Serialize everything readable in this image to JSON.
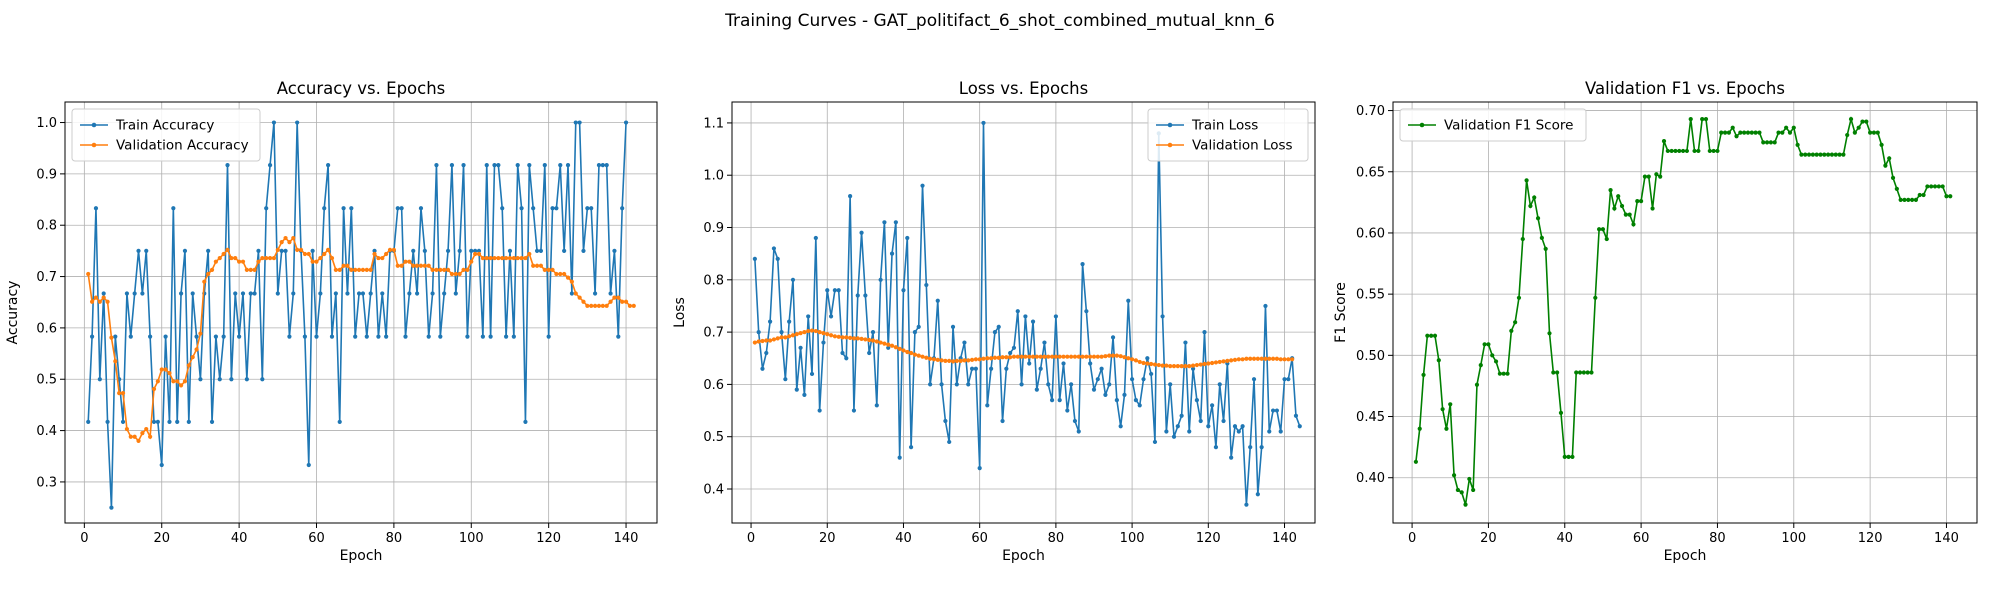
{
  "figure": {
    "suptitle": "Training Curves - GAT_politifact_6_shot_combined_mutual_knn_6"
  },
  "chart_data": [
    {
      "type": "line",
      "title": "Accuracy vs. Epochs",
      "xlabel": "Epoch",
      "ylabel": "Accuracy",
      "xlim": [
        -5,
        148
      ],
      "ylim": [
        0.22,
        1.04
      ],
      "xticks": [
        0,
        20,
        40,
        60,
        80,
        100,
        120,
        140
      ],
      "yticks": [
        0.3,
        0.4,
        0.5,
        0.6,
        0.7,
        0.8,
        0.9,
        1.0
      ],
      "ytick_labels": [
        "0.3",
        "0.4",
        "0.5",
        "0.6",
        "0.7",
        "0.8",
        "0.9",
        "1.0"
      ],
      "grid": true,
      "legend": "upper-left",
      "series": [
        {
          "name": "Train Accuracy",
          "color": "#1f77b4",
          "values": [
            0.417,
            0.583,
            0.833,
            0.5,
            0.667,
            0.417,
            0.25,
            0.583,
            0.5,
            0.417,
            0.667,
            0.583,
            0.667,
            0.75,
            0.667,
            0.75,
            0.583,
            0.417,
            0.417,
            0.333,
            0.583,
            0.417,
            0.833,
            0.417,
            0.667,
            0.75,
            0.417,
            0.667,
            0.583,
            0.5,
            0.667,
            0.75,
            0.417,
            0.583,
            0.5,
            0.583,
            0.917,
            0.5,
            0.667,
            0.583,
            0.667,
            0.5,
            0.667,
            0.667,
            0.75,
            0.5,
            0.833,
            0.917,
            1.0,
            0.667,
            0.75,
            0.75,
            0.583,
            0.667,
            1.0,
            0.75,
            0.583,
            0.333,
            0.75,
            0.583,
            0.667,
            0.833,
            0.917,
            0.583,
            0.667,
            0.417,
            0.833,
            0.667,
            0.833,
            0.583,
            0.667,
            0.667,
            0.583,
            0.667,
            0.75,
            0.583,
            0.667,
            0.583,
            0.75,
            0.75,
            0.833,
            0.833,
            0.583,
            0.667,
            0.75,
            0.667,
            0.833,
            0.75,
            0.583,
            0.667,
            0.917,
            0.583,
            0.667,
            0.75,
            0.917,
            0.667,
            0.75,
            0.917,
            0.583,
            0.75,
            0.75,
            0.75,
            0.583,
            0.917,
            0.583,
            0.917,
            0.917,
            0.833,
            0.583,
            0.75,
            0.583,
            0.917,
            0.833,
            0.417,
            0.917,
            0.833,
            0.75,
            0.75,
            0.917,
            0.583,
            0.833,
            0.833,
            0.917,
            0.75,
            0.917,
            0.667,
            1.0,
            1.0,
            0.75,
            0.833,
            0.833,
            0.667,
            0.917,
            0.917,
            0.917,
            0.667,
            0.75,
            0.583,
            0.833,
            1.0
          ]
        },
        {
          "name": "Validation Accuracy",
          "color": "#ff7f0e",
          "values": [
            0.705,
            0.651,
            0.659,
            0.651,
            0.659,
            0.651,
            0.581,
            0.535,
            0.473,
            0.473,
            0.403,
            0.388,
            0.388,
            0.38,
            0.395,
            0.403,
            0.388,
            0.481,
            0.496,
            0.519,
            0.519,
            0.512,
            0.496,
            0.496,
            0.488,
            0.496,
            0.527,
            0.543,
            0.558,
            0.589,
            0.69,
            0.705,
            0.713,
            0.729,
            0.736,
            0.744,
            0.752,
            0.736,
            0.736,
            0.729,
            0.729,
            0.713,
            0.713,
            0.713,
            0.729,
            0.736,
            0.736,
            0.736,
            0.736,
            0.752,
            0.767,
            0.775,
            0.767,
            0.775,
            0.752,
            0.752,
            0.744,
            0.744,
            0.729,
            0.729,
            0.736,
            0.744,
            0.752,
            0.736,
            0.713,
            0.713,
            0.721,
            0.721,
            0.713,
            0.713,
            0.713,
            0.713,
            0.713,
            0.713,
            0.744,
            0.736,
            0.736,
            0.744,
            0.752,
            0.752,
            0.721,
            0.721,
            0.729,
            0.729,
            0.721,
            0.721,
            0.721,
            0.721,
            0.721,
            0.713,
            0.713,
            0.713,
            0.713,
            0.713,
            0.705,
            0.705,
            0.705,
            0.713,
            0.713,
            0.729,
            0.744,
            0.744,
            0.736,
            0.736,
            0.736,
            0.736,
            0.736,
            0.736,
            0.736,
            0.736,
            0.736,
            0.736,
            0.736,
            0.736,
            0.744,
            0.721,
            0.721,
            0.721,
            0.713,
            0.713,
            0.713,
            0.705,
            0.705,
            0.705,
            0.698,
            0.69,
            0.667,
            0.659,
            0.651,
            0.643,
            0.643,
            0.643,
            0.643,
            0.643,
            0.643,
            0.651,
            0.659,
            0.659,
            0.651,
            0.651,
            0.643,
            0.643
          ]
        }
      ]
    },
    {
      "type": "line",
      "title": "Loss vs. Epochs",
      "xlabel": "Epoch",
      "ylabel": "Loss",
      "xlim": [
        -5,
        148
      ],
      "ylim": [
        0.335,
        1.14
      ],
      "xticks": [
        0,
        20,
        40,
        60,
        80,
        100,
        120,
        140
      ],
      "yticks": [
        0.4,
        0.5,
        0.6,
        0.7,
        0.8,
        0.9,
        1.0,
        1.1
      ],
      "ytick_labels": [
        "0.4",
        "0.5",
        "0.6",
        "0.7",
        "0.8",
        "0.9",
        "1.0",
        "1.1"
      ],
      "grid": true,
      "legend": "upper-right",
      "series": [
        {
          "name": "Train Loss",
          "color": "#1f77b4",
          "values": [
            0.84,
            0.7,
            0.63,
            0.66,
            0.72,
            0.86,
            0.84,
            0.7,
            0.61,
            0.72,
            0.8,
            0.59,
            0.67,
            0.58,
            0.73,
            0.62,
            0.88,
            0.55,
            0.68,
            0.78,
            0.73,
            0.78,
            0.78,
            0.66,
            0.65,
            0.96,
            0.55,
            0.77,
            0.89,
            0.77,
            0.66,
            0.7,
            0.56,
            0.8,
            0.91,
            0.67,
            0.85,
            0.91,
            0.46,
            0.78,
            0.88,
            0.48,
            0.7,
            0.71,
            0.98,
            0.79,
            0.6,
            0.65,
            0.76,
            0.6,
            0.53,
            0.49,
            0.71,
            0.6,
            0.65,
            0.68,
            0.6,
            0.63,
            0.63,
            0.44,
            1.1,
            0.56,
            0.63,
            0.7,
            0.71,
            0.53,
            0.63,
            0.66,
            0.67,
            0.74,
            0.6,
            0.73,
            0.64,
            0.72,
            0.59,
            0.63,
            0.68,
            0.6,
            0.57,
            0.73,
            0.57,
            0.64,
            0.55,
            0.6,
            0.53,
            0.51,
            0.83,
            0.74,
            0.64,
            0.59,
            0.61,
            0.63,
            0.58,
            0.6,
            0.69,
            0.57,
            0.52,
            0.58,
            0.76,
            0.61,
            0.57,
            0.56,
            0.61,
            0.65,
            0.62,
            0.49,
            1.08,
            0.73,
            0.51,
            0.6,
            0.5,
            0.52,
            0.54,
            0.68,
            0.51,
            0.63,
            0.57,
            0.53,
            0.7,
            0.52,
            0.56,
            0.48,
            0.6,
            0.53,
            0.64,
            0.46,
            0.52,
            0.51,
            0.52,
            0.37,
            0.48,
            0.61,
            0.39,
            0.48,
            0.75,
            0.51,
            0.55,
            0.55,
            0.51,
            0.61,
            0.61,
            0.65,
            0.54,
            0.52
          ]
        },
        {
          "name": "Validation Loss",
          "color": "#ff7f0e",
          "values": [
            0.68,
            0.682,
            0.683,
            0.684,
            0.684,
            0.686,
            0.688,
            0.69,
            0.69,
            0.692,
            0.694,
            0.696,
            0.698,
            0.7,
            0.702,
            0.703,
            0.702,
            0.7,
            0.698,
            0.696,
            0.694,
            0.692,
            0.691,
            0.69,
            0.69,
            0.689,
            0.688,
            0.688,
            0.687,
            0.686,
            0.685,
            0.684,
            0.682,
            0.68,
            0.678,
            0.676,
            0.674,
            0.671,
            0.668,
            0.665,
            0.662,
            0.66,
            0.657,
            0.655,
            0.653,
            0.651,
            0.649,
            0.648,
            0.647,
            0.646,
            0.645,
            0.645,
            0.644,
            0.645,
            0.645,
            0.646,
            0.646,
            0.647,
            0.648,
            0.648,
            0.649,
            0.65,
            0.65,
            0.651,
            0.651,
            0.652,
            0.652,
            0.652,
            0.653,
            0.653,
            0.653,
            0.653,
            0.653,
            0.653,
            0.653,
            0.653,
            0.653,
            0.653,
            0.653,
            0.653,
            0.653,
            0.653,
            0.653,
            0.653,
            0.653,
            0.653,
            0.653,
            0.653,
            0.653,
            0.653,
            0.653,
            0.653,
            0.654,
            0.655,
            0.655,
            0.655,
            0.654,
            0.652,
            0.65,
            0.648,
            0.646,
            0.643,
            0.641,
            0.64,
            0.639,
            0.638,
            0.637,
            0.636,
            0.636,
            0.635,
            0.635,
            0.635,
            0.635,
            0.635,
            0.635,
            0.636,
            0.637,
            0.638,
            0.639,
            0.64,
            0.641,
            0.642,
            0.643,
            0.644,
            0.645,
            0.646,
            0.647,
            0.648,
            0.648,
            0.649,
            0.649,
            0.649,
            0.649,
            0.649,
            0.649,
            0.649,
            0.649,
            0.649,
            0.648,
            0.648,
            0.648,
            0.648
          ]
        }
      ]
    },
    {
      "type": "line",
      "title": "Validation F1 vs. Epochs",
      "xlabel": "Epoch",
      "ylabel": "F1 Score",
      "xlim": [
        -5,
        148
      ],
      "ylim": [
        0.363,
        0.707
      ],
      "xticks": [
        0,
        20,
        40,
        60,
        80,
        100,
        120,
        140
      ],
      "yticks": [
        0.4,
        0.45,
        0.5,
        0.55,
        0.6,
        0.65,
        0.7
      ],
      "ytick_labels": [
        "0.40",
        "0.45",
        "0.50",
        "0.55",
        "0.60",
        "0.65",
        "0.70"
      ],
      "grid": true,
      "legend": "upper-left",
      "series": [
        {
          "name": "Validation F1 Score",
          "color": "#008000",
          "values": [
            0.413,
            0.44,
            0.484,
            0.516,
            0.516,
            0.516,
            0.496,
            0.456,
            0.44,
            0.46,
            0.402,
            0.39,
            0.388,
            0.378,
            0.399,
            0.39,
            0.476,
            0.492,
            0.509,
            0.509,
            0.5,
            0.495,
            0.485,
            0.485,
            0.485,
            0.52,
            0.527,
            0.547,
            0.595,
            0.643,
            0.622,
            0.629,
            0.612,
            0.596,
            0.587,
            0.518,
            0.486,
            0.486,
            0.453,
            0.417,
            0.417,
            0.417,
            0.486,
            0.486,
            0.486,
            0.486,
            0.486,
            0.547,
            0.603,
            0.603,
            0.595,
            0.635,
            0.62,
            0.63,
            0.622,
            0.615,
            0.615,
            0.607,
            0.626,
            0.626,
            0.646,
            0.646,
            0.62,
            0.648,
            0.646,
            0.675,
            0.667,
            0.667,
            0.667,
            0.667,
            0.667,
            0.667,
            0.693,
            0.667,
            0.667,
            0.693,
            0.693,
            0.667,
            0.667,
            0.667,
            0.682,
            0.682,
            0.682,
            0.686,
            0.679,
            0.682,
            0.682,
            0.682,
            0.682,
            0.682,
            0.682,
            0.674,
            0.674,
            0.674,
            0.674,
            0.682,
            0.682,
            0.686,
            0.682,
            0.686,
            0.672,
            0.664,
            0.664,
            0.664,
            0.664,
            0.664,
            0.664,
            0.664,
            0.664,
            0.664,
            0.664,
            0.664,
            0.664,
            0.68,
            0.693,
            0.682,
            0.686,
            0.691,
            0.691,
            0.682,
            0.682,
            0.682,
            0.672,
            0.655,
            0.661,
            0.645,
            0.636,
            0.627,
            0.627,
            0.627,
            0.627,
            0.627,
            0.631,
            0.631,
            0.638,
            0.638,
            0.638,
            0.638,
            0.638,
            0.63,
            0.63
          ]
        }
      ]
    }
  ]
}
